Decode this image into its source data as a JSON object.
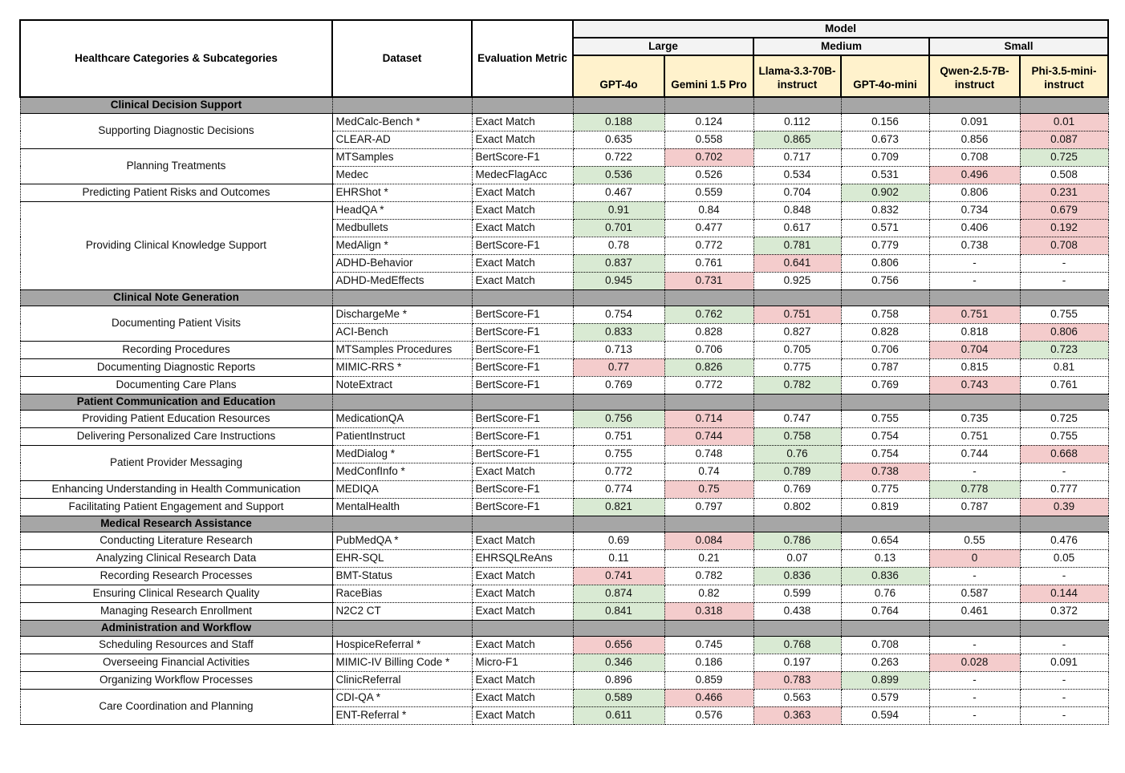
{
  "colors": {
    "green": "#d9ead3",
    "red": "#f4cccc",
    "header_yellow": "#fff2cc",
    "header_gray": "#f3f3f3",
    "section_gray": "#a6a6a6",
    "page_bg": "#ffffff"
  },
  "legend": {
    "green_means": "best-in-row highlight",
    "red_means": "worst-in-row highlight"
  },
  "header": {
    "col_category": "Healthcare Categories & Subcategories",
    "col_dataset": "Dataset",
    "col_metric": "Evaluation Metric",
    "model_label": "Model",
    "size_groups": [
      {
        "label": "Large",
        "models": [
          "GPT-4o",
          "Gemini 1.5 Pro"
        ]
      },
      {
        "label": "Medium",
        "models": [
          "Llama-3.3-70B-instruct",
          "GPT-4o-mini"
        ]
      },
      {
        "label": "Small",
        "models": [
          "Qwen-2.5-7B-instruct",
          "Phi-3.5-mini-instruct"
        ]
      }
    ]
  },
  "sections": [
    {
      "title": "Clinical Decision Support",
      "groups": [
        {
          "subcategory": "Supporting Diagnostic Decisions",
          "rows": [
            {
              "dataset": "MedCalc-Bench *",
              "metric": "Exact Match",
              "values": [
                "0.188",
                "0.124",
                "0.112",
                "0.156",
                "0.091",
                "0.01"
              ],
              "hl": [
                "g",
                "",
                "",
                "",
                "",
                "r"
              ]
            },
            {
              "dataset": "CLEAR-AD",
              "metric": "Exact Match",
              "values": [
                "0.635",
                "0.558",
                "0.865",
                "0.673",
                "0.856",
                "0.087"
              ],
              "hl": [
                "",
                "",
                "g",
                "",
                "",
                "r"
              ]
            }
          ]
        },
        {
          "subcategory": "Planning Treatments",
          "rows": [
            {
              "dataset": "MTSamples",
              "metric": "BertScore-F1",
              "values": [
                "0.722",
                "0.702",
                "0.717",
                "0.709",
                "0.708",
                "0.725"
              ],
              "hl": [
                "",
                "r",
                "",
                "",
                "",
                "g"
              ]
            },
            {
              "dataset": "Medec",
              "metric": "MedecFlagAcc",
              "values": [
                "0.536",
                "0.526",
                "0.534",
                "0.531",
                "0.496",
                "0.508"
              ],
              "hl": [
                "g",
                "",
                "",
                "",
                "r",
                ""
              ]
            }
          ]
        },
        {
          "subcategory": "Predicting Patient Risks and Outcomes",
          "rows": [
            {
              "dataset": "EHRShot *",
              "metric": "Exact Match",
              "values": [
                "0.467",
                "0.559",
                "0.704",
                "0.902",
                "0.806",
                "0.231"
              ],
              "hl": [
                "",
                "",
                "",
                "g",
                "",
                "r"
              ]
            }
          ]
        },
        {
          "subcategory": "Providing Clinical Knowledge Support",
          "rows": [
            {
              "dataset": "HeadQA *",
              "metric": "Exact Match",
              "values": [
                "0.91",
                "0.84",
                "0.848",
                "0.832",
                "0.734",
                "0.679"
              ],
              "hl": [
                "g",
                "",
                "",
                "",
                "",
                "r"
              ]
            },
            {
              "dataset": "Medbullets",
              "metric": "Exact Match",
              "values": [
                "0.701",
                "0.477",
                "0.617",
                "0.571",
                "0.406",
                "0.192"
              ],
              "hl": [
                "g",
                "",
                "",
                "",
                "",
                "r"
              ]
            },
            {
              "dataset": "MedAlign *",
              "metric": "BertScore-F1",
              "values": [
                "0.78",
                "0.772",
                "0.781",
                "0.779",
                "0.738",
                "0.708"
              ],
              "hl": [
                "",
                "",
                "g",
                "",
                "",
                "r"
              ]
            },
            {
              "dataset": "ADHD-Behavior",
              "metric": "Exact Match",
              "values": [
                "0.837",
                "0.761",
                "0.641",
                "0.806",
                "-",
                "-"
              ],
              "hl": [
                "g",
                "",
                "r",
                "",
                "",
                ""
              ]
            },
            {
              "dataset": "ADHD-MedEffects",
              "metric": "Exact Match",
              "values": [
                "0.945",
                "0.731",
                "0.925",
                "0.756",
                "-",
                "-"
              ],
              "hl": [
                "g",
                "r",
                "",
                "",
                "",
                ""
              ]
            }
          ]
        }
      ]
    },
    {
      "title": "Clinical Note Generation",
      "groups": [
        {
          "subcategory": "Documenting Patient Visits",
          "rows": [
            {
              "dataset": "DischargeMe *",
              "metric": "BertScore-F1",
              "values": [
                "0.754",
                "0.762",
                "0.751",
                "0.758",
                "0.751",
                "0.755"
              ],
              "hl": [
                "",
                "g",
                "r",
                "",
                "r",
                ""
              ]
            },
            {
              "dataset": "ACI-Bench",
              "metric": "BertScore-F1",
              "values": [
                "0.833",
                "0.828",
                "0.827",
                "0.828",
                "0.818",
                "0.806"
              ],
              "hl": [
                "g",
                "",
                "",
                "",
                "",
                "r"
              ]
            }
          ]
        },
        {
          "subcategory": "Recording Procedures",
          "rows": [
            {
              "dataset": "MTSamples Procedures",
              "metric": "BertScore-F1",
              "values": [
                "0.713",
                "0.706",
                "0.705",
                "0.706",
                "0.704",
                "0.723"
              ],
              "hl": [
                "",
                "",
                "",
                "",
                "r",
                "g"
              ]
            }
          ]
        },
        {
          "subcategory": "Documenting Diagnostic Reports",
          "rows": [
            {
              "dataset": "MIMIC-RRS *",
              "metric": "BertScore-F1",
              "values": [
                "0.77",
                "0.826",
                "0.775",
                "0.787",
                "0.815",
                "0.81"
              ],
              "hl": [
                "r",
                "g",
                "",
                "",
                "",
                ""
              ]
            }
          ]
        },
        {
          "subcategory": "Documenting Care Plans",
          "rows": [
            {
              "dataset": "NoteExtract",
              "metric": "BertScore-F1",
              "values": [
                "0.769",
                "0.772",
                "0.782",
                "0.769",
                "0.743",
                "0.761"
              ],
              "hl": [
                "",
                "",
                "g",
                "",
                "r",
                ""
              ]
            }
          ]
        }
      ]
    },
    {
      "title": "Patient Communication and Education",
      "groups": [
        {
          "subcategory": "Providing Patient Education Resources",
          "rows": [
            {
              "dataset": "MedicationQA",
              "metric": "BertScore-F1",
              "values": [
                "0.756",
                "0.714",
                "0.747",
                "0.755",
                "0.735",
                "0.725"
              ],
              "hl": [
                "g",
                "r",
                "",
                "",
                "",
                ""
              ]
            }
          ]
        },
        {
          "subcategory": "Delivering Personalized Care Instructions",
          "rows": [
            {
              "dataset": "PatientInstruct",
              "metric": "BertScore-F1",
              "values": [
                "0.751",
                "0.744",
                "0.758",
                "0.754",
                "0.751",
                "0.755"
              ],
              "hl": [
                "",
                "r",
                "g",
                "",
                "",
                ""
              ]
            }
          ]
        },
        {
          "subcategory": "Patient Provider Messaging",
          "rows": [
            {
              "dataset": "MedDialog *",
              "metric": "BertScore-F1",
              "values": [
                "0.755",
                "0.748",
                "0.76",
                "0.754",
                "0.744",
                "0.668"
              ],
              "hl": [
                "",
                "",
                "g",
                "",
                "",
                "r"
              ]
            },
            {
              "dataset": "MedConfInfo *",
              "metric": "Exact Match",
              "values": [
                "0.772",
                "0.74",
                "0.789",
                "0.738",
                "-",
                "-"
              ],
              "hl": [
                "",
                "",
                "g",
                "r",
                "",
                ""
              ]
            }
          ]
        },
        {
          "subcategory": "Enhancing Understanding in Health Communication",
          "rows": [
            {
              "dataset": "MEDIQA",
              "metric": "BertScore-F1",
              "values": [
                "0.774",
                "0.75",
                "0.769",
                "0.775",
                "0.778",
                "0.777"
              ],
              "hl": [
                "",
                "r",
                "",
                "",
                "g",
                ""
              ]
            }
          ]
        },
        {
          "subcategory": "Facilitating Patient Engagement and Support",
          "rows": [
            {
              "dataset": "MentalHealth",
              "metric": "BertScore-F1",
              "values": [
                "0.821",
                "0.797",
                "0.802",
                "0.819",
                "0.787",
                "0.39"
              ],
              "hl": [
                "g",
                "",
                "",
                "",
                "",
                "r"
              ]
            }
          ]
        }
      ]
    },
    {
      "title": "Medical Research Assistance",
      "groups": [
        {
          "subcategory": "Conducting Literature Research",
          "rows": [
            {
              "dataset": "PubMedQA *",
              "metric": "Exact Match",
              "values": [
                "0.69",
                "0.084",
                "0.786",
                "0.654",
                "0.55",
                "0.476"
              ],
              "hl": [
                "",
                "r",
                "g",
                "",
                "",
                ""
              ]
            }
          ]
        },
        {
          "subcategory": "Analyzing Clinical Research Data",
          "rows": [
            {
              "dataset": "EHR-SQL",
              "metric": "EHRSQLReAns",
              "values": [
                "0.11",
                "0.21",
                "0.07",
                "0.13",
                "0",
                "0.05"
              ],
              "hl": [
                "",
                "",
                "",
                "",
                "r",
                ""
              ]
            }
          ]
        },
        {
          "subcategory": "Recording Research Processes",
          "rows": [
            {
              "dataset": "BMT-Status",
              "metric": "Exact Match",
              "values": [
                "0.741",
                "0.782",
                "0.836",
                "0.836",
                "-",
                "-"
              ],
              "hl": [
                "r",
                "",
                "g",
                "g",
                "",
                ""
              ]
            }
          ]
        },
        {
          "subcategory": "Ensuring Clinical Research Quality",
          "rows": [
            {
              "dataset": "RaceBias",
              "metric": "Exact Match",
              "values": [
                "0.874",
                "0.82",
                "0.599",
                "0.76",
                "0.587",
                "0.144"
              ],
              "hl": [
                "g",
                "",
                "",
                "",
                "",
                "r"
              ]
            }
          ]
        },
        {
          "subcategory": "Managing Research Enrollment",
          "rows": [
            {
              "dataset": "N2C2 CT",
              "metric": "Exact Match",
              "values": [
                "0.841",
                "0.318",
                "0.438",
                "0.764",
                "0.461",
                "0.372"
              ],
              "hl": [
                "g",
                "r",
                "",
                "",
                "",
                ""
              ]
            }
          ]
        }
      ]
    },
    {
      "title": "Administration and Workflow",
      "groups": [
        {
          "subcategory": "Scheduling Resources and Staff",
          "rows": [
            {
              "dataset": "HospiceReferral *",
              "metric": "Exact Match",
              "values": [
                "0.656",
                "0.745",
                "0.768",
                "0.708",
                "-",
                "-"
              ],
              "hl": [
                "r",
                "",
                "g",
                "",
                "",
                ""
              ]
            }
          ]
        },
        {
          "subcategory": "Overseeing Financial Activities",
          "rows": [
            {
              "dataset": "MIMIC-IV Billing Code *",
              "metric": "Micro-F1",
              "values": [
                "0.346",
                "0.186",
                "0.197",
                "0.263",
                "0.028",
                "0.091"
              ],
              "hl": [
                "g",
                "",
                "",
                "",
                "r",
                ""
              ]
            }
          ]
        },
        {
          "subcategory": "Organizing Workflow Processes",
          "rows": [
            {
              "dataset": "ClinicReferral",
              "metric": "Exact Match",
              "values": [
                "0.896",
                "0.859",
                "0.783",
                "0.899",
                "-",
                "-"
              ],
              "hl": [
                "",
                "",
                "r",
                "g",
                "",
                ""
              ]
            }
          ]
        },
        {
          "subcategory": "Care Coordination and Planning",
          "rows": [
            {
              "dataset": "CDI-QA *",
              "metric": "Exact Match",
              "values": [
                "0.589",
                "0.466",
                "0.563",
                "0.579",
                "-",
                "-"
              ],
              "hl": [
                "g",
                "r",
                "",
                "",
                "",
                ""
              ]
            },
            {
              "dataset": "ENT-Referral *",
              "metric": "Exact Match",
              "values": [
                "0.611",
                "0.576",
                "0.363",
                "0.594",
                "-",
                "-"
              ],
              "hl": [
                "g",
                "",
                "r",
                "",
                "",
                ""
              ]
            }
          ]
        }
      ]
    }
  ]
}
